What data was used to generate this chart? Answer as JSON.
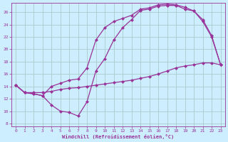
{
  "xlabel": "Windchill (Refroidissement éolien,°C)",
  "background_color": "#cceeff",
  "grid_color": "#aacccc",
  "line_color": "#993399",
  "markersize": 2.5,
  "linewidth": 0.9,
  "xlim": [
    -0.5,
    23.5
  ],
  "ylim": [
    7.5,
    27.5
  ],
  "yticks": [
    8,
    10,
    12,
    14,
    16,
    18,
    20,
    22,
    24,
    26
  ],
  "xticks": [
    0,
    1,
    2,
    3,
    4,
    5,
    6,
    7,
    8,
    9,
    10,
    11,
    12,
    13,
    14,
    15,
    16,
    17,
    18,
    19,
    20,
    21,
    22,
    23
  ],
  "curve1_x": [
    0,
    1,
    2,
    3,
    4,
    5,
    6,
    7,
    8,
    9,
    10,
    11,
    12,
    13,
    14,
    15,
    16,
    17,
    18,
    19,
    20,
    21,
    22,
    23
  ],
  "curve1_y": [
    14.2,
    13.0,
    13.0,
    13.0,
    13.2,
    13.5,
    13.7,
    13.8,
    14.0,
    14.2,
    14.4,
    14.6,
    14.8,
    15.0,
    15.3,
    15.6,
    16.0,
    16.5,
    17.0,
    17.3,
    17.5,
    17.8,
    17.8,
    17.5
  ],
  "curve2_x": [
    0,
    1,
    2,
    3,
    4,
    5,
    6,
    7,
    8,
    9,
    10,
    11,
    12,
    13,
    14,
    15,
    16,
    17,
    18,
    19,
    20,
    21,
    22,
    23
  ],
  "curve2_y": [
    14.2,
    13.0,
    12.8,
    12.5,
    11.0,
    10.0,
    9.8,
    9.2,
    11.5,
    16.5,
    18.5,
    21.5,
    23.5,
    24.8,
    26.3,
    26.5,
    27.0,
    27.1,
    27.1,
    26.5,
    26.2,
    24.5,
    22.0,
    17.5
  ],
  "curve3_x": [
    0,
    1,
    2,
    3,
    4,
    5,
    6,
    7,
    8,
    9,
    10,
    11,
    12,
    13,
    14,
    15,
    16,
    17,
    18,
    19,
    20,
    21,
    22,
    23
  ],
  "curve3_y": [
    14.2,
    13.0,
    12.8,
    12.5,
    14.0,
    14.5,
    15.0,
    15.2,
    17.0,
    21.5,
    23.5,
    24.5,
    25.0,
    25.5,
    26.5,
    26.7,
    27.2,
    27.3,
    27.2,
    26.8,
    26.2,
    24.8,
    22.2,
    17.5
  ]
}
